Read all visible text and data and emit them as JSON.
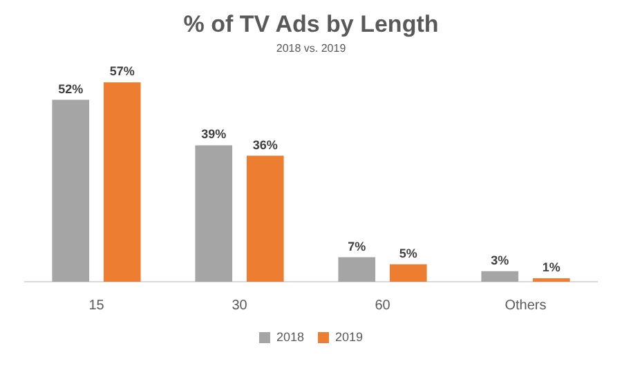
{
  "chart_data": {
    "type": "bar",
    "title": "% of TV Ads by Length",
    "subtitle": "2018 vs. 2019",
    "categories": [
      "15",
      "30",
      "60",
      "Others"
    ],
    "series": [
      {
        "name": "2018",
        "color": "#a5a5a5",
        "values": [
          52,
          39,
          7,
          3
        ],
        "value_labels": [
          "52%",
          "39%",
          "7%",
          "3%"
        ]
      },
      {
        "name": "2019",
        "color": "#ed7d31",
        "values": [
          57,
          36,
          5,
          1
        ],
        "value_labels": [
          "57%",
          "36%",
          "5%",
          "1%"
        ]
      }
    ],
    "grid": false,
    "legend": "bottom",
    "tick_labels": "x"
  }
}
